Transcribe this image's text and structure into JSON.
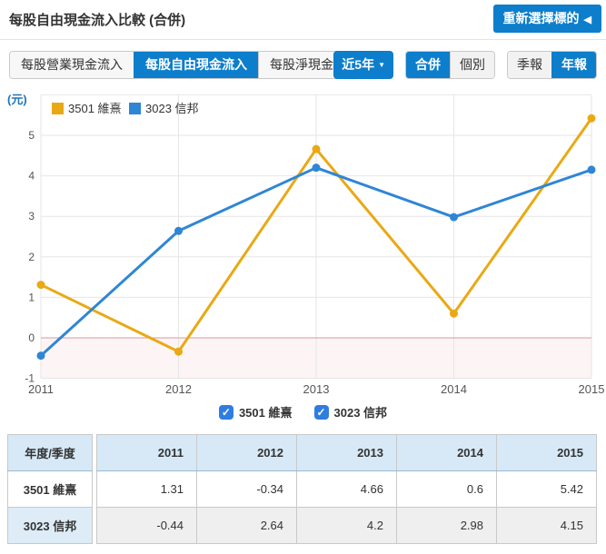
{
  "header": {
    "title": "每股自由現金流入比較 (合併)",
    "reselect_button": "重新選擇標的"
  },
  "icons": {
    "back_triangle": "◀",
    "caret_down": "▼",
    "check": "✓"
  },
  "toolbar": {
    "metric_tabs": [
      {
        "label": "每股營業現金流入",
        "active": false
      },
      {
        "label": "每股自由現金流入",
        "active": true
      },
      {
        "label": "每股淨現金流入",
        "active": false
      }
    ],
    "range_dropdown": {
      "label": "近5年"
    },
    "scope_buttons": [
      {
        "label": "合併",
        "active": true
      },
      {
        "label": "個別",
        "active": false
      }
    ],
    "period_buttons": [
      {
        "label": "季報",
        "active": false
      },
      {
        "label": "年報",
        "active": true
      }
    ]
  },
  "chart_data": {
    "type": "line",
    "title": "每股自由現金流入比較 (合併)",
    "unit_label": "(元)",
    "categories": [
      "2011",
      "2012",
      "2013",
      "2014",
      "2015"
    ],
    "series": [
      {
        "name": "3501 維熹",
        "color": "#e9a914",
        "values": [
          1.31,
          -0.34,
          4.66,
          0.6,
          5.42
        ]
      },
      {
        "name": "3023 信邦",
        "color": "#2e86d5",
        "values": [
          -0.44,
          2.64,
          4.2,
          2.98,
          4.15
        ]
      }
    ],
    "ylim": [
      -1,
      6
    ],
    "yticks": [
      -1,
      0,
      1,
      2,
      3,
      4,
      5
    ],
    "grid": true,
    "legend_position": "top-left",
    "grid_color": "#e6e6e6",
    "zero_line_color": "#d9999f",
    "negative_fill": "#fcf4f5",
    "tick_color": "#555"
  },
  "legend_toggles": [
    {
      "label": "3501 維熹",
      "checked": true
    },
    {
      "label": "3023 信邦",
      "checked": true
    }
  ],
  "table": {
    "corner_header": "年度/季度",
    "col_headers": [
      "2011",
      "2012",
      "2013",
      "2014",
      "2015"
    ],
    "rows": [
      {
        "label": "3501 維熹",
        "values": [
          "1.31",
          "-0.34",
          "4.66",
          "0.6",
          "5.42"
        ]
      },
      {
        "label": "3023 信邦",
        "values": [
          "-0.44",
          "2.64",
          "4.2",
          "2.98",
          "4.15"
        ]
      }
    ]
  },
  "colors": {
    "accent": "#0c7ecc",
    "table_header_bg": "#d7e9f6",
    "table_stripe_bg": "#efefef"
  }
}
